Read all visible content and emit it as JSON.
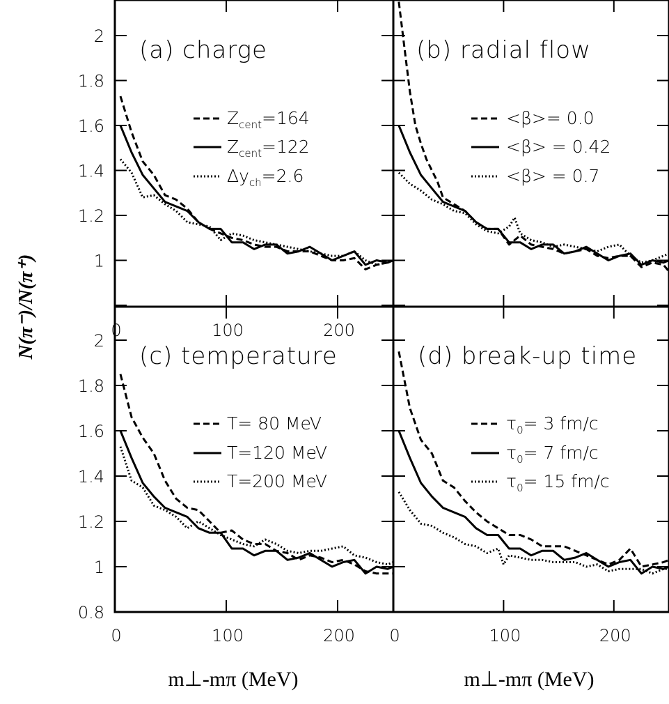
{
  "figure": {
    "ylabel": "N(π⁻)/N(π⁺)",
    "xlabels": [
      "m⊥-mπ (MeV)",
      "m⊥-mπ (MeV)"
    ]
  },
  "chart_data": [
    {
      "type": "line",
      "title": "(a) charge",
      "xlim": [
        0,
        250
      ],
      "ylim": [
        0.8,
        2.15
      ],
      "xticks": [
        0,
        100,
        200
      ],
      "yticks": [
        0.8,
        1,
        1.2,
        1.4,
        1.6,
        1.8,
        2
      ],
      "xtick_labels": [
        "0",
        "100",
        "200"
      ],
      "ytick_labels": [
        "",
        "1",
        "1.2",
        "1.4",
        "1.6",
        "1.8",
        "2"
      ],
      "legend": [
        {
          "text": "Z",
          "sub": "cent",
          "rest": "=164"
        },
        {
          "text": "Z",
          "sub": "cent",
          "rest": "=122"
        },
        {
          "text": "Δy",
          "sub": "ch",
          "rest": "=2.6"
        }
      ],
      "series": [
        {
          "name": "Zcent=164",
          "style": "dashed",
          "x": [
            5,
            15,
            25,
            35,
            45,
            55,
            65,
            75,
            85,
            95,
            105,
            115,
            125,
            135,
            145,
            155,
            165,
            175,
            185,
            195,
            205,
            215,
            225,
            235,
            245,
            250
          ],
          "y": [
            1.73,
            1.57,
            1.44,
            1.38,
            1.29,
            1.27,
            1.23,
            1.17,
            1.14,
            1.12,
            1.1,
            1.09,
            1.07,
            1.06,
            1.06,
            1.04,
            1.04,
            1.04,
            1.02,
            1.0,
            1.0,
            1.01,
            0.96,
            0.98,
            0.99,
            1.0
          ]
        },
        {
          "name": "Zcent=122",
          "style": "solid",
          "x": [
            5,
            15,
            25,
            35,
            45,
            55,
            65,
            75,
            85,
            95,
            105,
            115,
            125,
            135,
            145,
            155,
            165,
            175,
            185,
            195,
            205,
            215,
            225,
            235,
            245,
            250
          ],
          "y": [
            1.6,
            1.48,
            1.38,
            1.32,
            1.26,
            1.24,
            1.22,
            1.17,
            1.14,
            1.14,
            1.08,
            1.08,
            1.05,
            1.07,
            1.07,
            1.03,
            1.04,
            1.06,
            1.03,
            1.0,
            1.02,
            1.04,
            0.98,
            1.0,
            0.99,
            1.0
          ]
        },
        {
          "name": "Δych=2.6",
          "style": "dotted",
          "x": [
            5,
            15,
            25,
            35,
            45,
            55,
            65,
            75,
            85,
            95,
            105,
            115,
            125,
            135,
            145,
            155,
            165,
            175,
            185,
            195,
            205,
            215,
            225,
            235,
            245,
            250
          ],
          "y": [
            1.45,
            1.39,
            1.28,
            1.29,
            1.25,
            1.22,
            1.17,
            1.16,
            1.15,
            1.09,
            1.12,
            1.11,
            1.09,
            1.08,
            1.07,
            1.06,
            1.05,
            1.04,
            1.03,
            1.02,
            1.02,
            1.04,
            1.0,
            0.98,
            0.99,
            1.0
          ]
        }
      ]
    },
    {
      "type": "line",
      "title": "(b) radial flow",
      "xlim": [
        0,
        250
      ],
      "ylim": [
        0.8,
        2.15
      ],
      "xticks": [
        0,
        100,
        200
      ],
      "yticks": [
        0.8,
        1,
        1.2,
        1.4,
        1.6,
        1.8,
        2
      ],
      "legend": [
        {
          "text": "<β>= 0.0"
        },
        {
          "text": "<β> = 0.42"
        },
        {
          "text": "<β> = 0.7"
        }
      ],
      "series": [
        {
          "name": "<β>= 0.0",
          "style": "dashed",
          "x": [
            5,
            10,
            15,
            20,
            25,
            30,
            35,
            40,
            45,
            55,
            65,
            75,
            85,
            95,
            105,
            115,
            125,
            135,
            145,
            155,
            165,
            175,
            185,
            195,
            205,
            215,
            225,
            235,
            245,
            250
          ],
          "y": [
            2.15,
            1.95,
            1.75,
            1.6,
            1.52,
            1.45,
            1.4,
            1.35,
            1.28,
            1.25,
            1.22,
            1.17,
            1.14,
            1.14,
            1.07,
            1.11,
            1.07,
            1.06,
            1.05,
            1.03,
            1.04,
            1.05,
            1.02,
            1.01,
            1.02,
            1.02,
            0.97,
            0.99,
            0.98,
            0.95
          ]
        },
        {
          "name": "<β> = 0.42",
          "style": "solid",
          "x": [
            5,
            15,
            25,
            35,
            45,
            55,
            65,
            75,
            85,
            95,
            105,
            115,
            125,
            135,
            145,
            155,
            165,
            175,
            185,
            195,
            205,
            215,
            225,
            235,
            245,
            250
          ],
          "y": [
            1.6,
            1.48,
            1.38,
            1.32,
            1.26,
            1.24,
            1.22,
            1.17,
            1.14,
            1.14,
            1.08,
            1.08,
            1.05,
            1.07,
            1.07,
            1.03,
            1.04,
            1.06,
            1.03,
            1.0,
            1.02,
            1.03,
            0.98,
            1.0,
            0.99,
            1.0
          ]
        },
        {
          "name": "<β> = 0.7",
          "style": "dotted",
          "x": [
            5,
            15,
            25,
            35,
            45,
            55,
            65,
            75,
            85,
            95,
            105,
            110,
            115,
            125,
            135,
            145,
            155,
            165,
            175,
            185,
            195,
            205,
            215,
            225,
            235,
            245,
            250
          ],
          "y": [
            1.39,
            1.34,
            1.31,
            1.27,
            1.25,
            1.22,
            1.21,
            1.16,
            1.13,
            1.12,
            1.15,
            1.19,
            1.12,
            1.09,
            1.08,
            1.06,
            1.07,
            1.06,
            1.05,
            1.04,
            1.06,
            1.07,
            1.02,
            0.99,
            1.0,
            1.02,
            1.03
          ]
        }
      ]
    },
    {
      "type": "line",
      "title": "(c) temperature",
      "xlim": [
        0,
        250
      ],
      "ylim": [
        0.8,
        2.15
      ],
      "xticks": [
        0,
        100,
        200
      ],
      "yticks": [
        0.8,
        1,
        1.2,
        1.4,
        1.6,
        1.8,
        2
      ],
      "xtick_labels": [
        "0",
        "100",
        "200"
      ],
      "ytick_labels": [
        "0.8",
        "1",
        "1.2",
        "1.4",
        "1.6",
        "1.8",
        "2"
      ],
      "legend": [
        {
          "text": "T= 80 MeV"
        },
        {
          "text": "T=120 MeV"
        },
        {
          "text": "T=200 MeV"
        }
      ],
      "series": [
        {
          "name": "T= 80 MeV",
          "style": "dashed",
          "x": [
            5,
            15,
            25,
            35,
            45,
            55,
            65,
            75,
            85,
            95,
            105,
            115,
            125,
            135,
            145,
            155,
            165,
            175,
            185,
            195,
            205,
            215,
            225,
            235,
            245,
            250
          ],
          "y": [
            1.85,
            1.66,
            1.57,
            1.5,
            1.38,
            1.3,
            1.26,
            1.25,
            1.2,
            1.15,
            1.16,
            1.12,
            1.1,
            1.1,
            1.07,
            1.06,
            1.03,
            1.05,
            1.04,
            1.02,
            1.03,
            1.01,
            0.98,
            0.97,
            0.97,
            0.97
          ]
        },
        {
          "name": "T=120 MeV",
          "style": "solid",
          "x": [
            5,
            15,
            25,
            35,
            45,
            55,
            65,
            75,
            85,
            95,
            105,
            115,
            125,
            135,
            145,
            155,
            165,
            175,
            185,
            195,
            205,
            215,
            225,
            235,
            245,
            250
          ],
          "y": [
            1.6,
            1.48,
            1.37,
            1.31,
            1.26,
            1.24,
            1.22,
            1.17,
            1.15,
            1.15,
            1.08,
            1.08,
            1.05,
            1.07,
            1.07,
            1.03,
            1.04,
            1.06,
            1.03,
            1.0,
            1.02,
            1.03,
            0.97,
            1.0,
            0.99,
            1.0
          ]
        },
        {
          "name": "T=200 MeV",
          "style": "dotted",
          "x": [
            5,
            15,
            25,
            35,
            45,
            55,
            65,
            75,
            85,
            95,
            105,
            115,
            125,
            135,
            145,
            155,
            165,
            175,
            185,
            195,
            205,
            215,
            225,
            235,
            245,
            250
          ],
          "y": [
            1.53,
            1.38,
            1.35,
            1.27,
            1.25,
            1.22,
            1.17,
            1.2,
            1.17,
            1.14,
            1.12,
            1.1,
            1.09,
            1.12,
            1.1,
            1.07,
            1.06,
            1.07,
            1.07,
            1.08,
            1.09,
            1.05,
            1.04,
            1.02,
            1.01,
            1.02
          ]
        }
      ]
    },
    {
      "type": "line",
      "title": "(d) break-up time",
      "xlim": [
        0,
        250
      ],
      "ylim": [
        0.8,
        2.15
      ],
      "xticks": [
        0,
        100,
        200
      ],
      "yticks": [
        0.8,
        1,
        1.2,
        1.4,
        1.6,
        1.8,
        2
      ],
      "xtick_labels": [
        "0",
        "100",
        "200"
      ],
      "legend": [
        {
          "text": "τ",
          "sub": "0",
          "rest": "= 3 fm/c"
        },
        {
          "text": "τ",
          "sub": "0",
          "rest": "= 7 fm/c"
        },
        {
          "text": "τ",
          "sub": "0",
          "rest": "= 15 fm/c"
        }
      ],
      "series": [
        {
          "name": "τ0= 3 fm/c",
          "style": "dashed",
          "x": [
            5,
            15,
            25,
            35,
            45,
            55,
            65,
            75,
            85,
            95,
            105,
            115,
            125,
            135,
            145,
            155,
            165,
            175,
            185,
            195,
            205,
            215,
            225,
            235,
            245,
            250
          ],
          "y": [
            1.95,
            1.7,
            1.56,
            1.5,
            1.38,
            1.35,
            1.29,
            1.24,
            1.2,
            1.17,
            1.14,
            1.14,
            1.12,
            1.09,
            1.09,
            1.09,
            1.07,
            1.05,
            1.03,
            1.01,
            1.03,
            1.08,
            1.0,
            1.01,
            1.02,
            1.03
          ]
        },
        {
          "name": "τ0= 7 fm/c",
          "style": "solid",
          "x": [
            5,
            15,
            25,
            35,
            45,
            55,
            65,
            75,
            85,
            95,
            105,
            115,
            125,
            135,
            145,
            155,
            165,
            175,
            185,
            195,
            205,
            215,
            225,
            235,
            245,
            250
          ],
          "y": [
            1.6,
            1.48,
            1.37,
            1.31,
            1.26,
            1.24,
            1.22,
            1.17,
            1.14,
            1.14,
            1.08,
            1.08,
            1.05,
            1.07,
            1.07,
            1.03,
            1.04,
            1.06,
            1.03,
            1.0,
            1.02,
            1.03,
            0.97,
            1.0,
            0.99,
            1.0
          ]
        },
        {
          "name": "τ0= 15 fm/c",
          "style": "dotted",
          "x": [
            5,
            15,
            25,
            35,
            45,
            55,
            65,
            75,
            85,
            95,
            100,
            105,
            115,
            125,
            135,
            145,
            155,
            165,
            175,
            185,
            195,
            205,
            215,
            225,
            235,
            245,
            250
          ],
          "y": [
            1.33,
            1.25,
            1.19,
            1.18,
            1.15,
            1.13,
            1.1,
            1.09,
            1.06,
            1.08,
            1.01,
            1.05,
            1.04,
            1.03,
            1.03,
            1.02,
            1.02,
            1.02,
            1.0,
            1.01,
            0.98,
            0.99,
            0.99,
            0.99,
            0.97,
            0.99,
            0.99
          ]
        }
      ]
    }
  ]
}
